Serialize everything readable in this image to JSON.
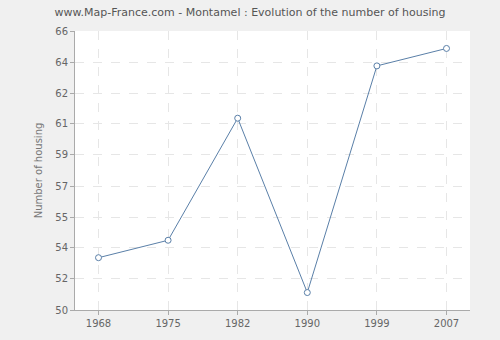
{
  "chart_data": {
    "type": "line",
    "title": "www.Map-France.com - Montamel : Evolution of the number of housing",
    "y_label": "Number of housing",
    "categories": [
      "1968",
      "1975",
      "1982",
      "1990",
      "1999",
      "2007"
    ],
    "values": [
      53,
      54,
      61,
      51,
      64,
      65
    ],
    "color": "#5a7fa8",
    "marker": "circle",
    "ylim": [
      50,
      66
    ],
    "yticks": [
      50,
      {
        "value": 51.78,
        "label": "52"
      },
      {
        "value": 53.56,
        "label": "54"
      },
      {
        "value": 55.33,
        "label": "55"
      },
      {
        "value": 57.11,
        "label": "57"
      },
      {
        "value": 58.89,
        "label": "59"
      },
      {
        "value": 60.67,
        "label": "61"
      },
      {
        "value": 62.44,
        "label": "62"
      },
      {
        "value": 64.22,
        "label": "64"
      },
      66
    ],
    "grid": true
  }
}
